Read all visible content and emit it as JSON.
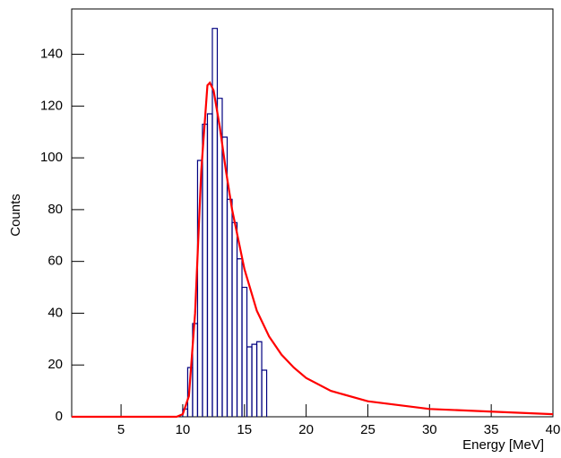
{
  "chart_data": {
    "type": "histogram",
    "xlabel": "Energy [MeV]",
    "ylabel": "Counts",
    "bins": [
      10.0,
      10.4,
      10.8,
      11.2,
      11.6,
      12.0,
      12.4,
      12.8,
      13.2,
      13.6,
      14.0,
      14.4,
      14.8,
      15.2,
      15.6,
      16.0,
      16.4,
      16.8
    ],
    "counts": [
      3,
      19,
      36,
      99,
      113,
      117,
      150,
      123,
      108,
      84,
      75,
      61,
      50,
      27,
      28,
      29,
      18
    ],
    "color": "#000080",
    "fit": {
      "color": "#ff0000",
      "x": [
        1,
        9.5,
        10,
        10.5,
        11,
        11.5,
        12,
        12.2,
        12.5,
        13,
        13.5,
        14,
        15,
        16,
        17,
        18,
        19,
        20,
        22,
        25,
        30,
        35,
        40
      ],
      "values": [
        0,
        0,
        1,
        8,
        40,
        95,
        128,
        129,
        126,
        112,
        95,
        80,
        57,
        41,
        31,
        24,
        19,
        15,
        10,
        6,
        3,
        2,
        1
      ]
    },
    "xlim": [
      1,
      40
    ],
    "ylim": [
      0,
      157.5
    ],
    "xticks": [
      5,
      10,
      15,
      20,
      25,
      30,
      35,
      40
    ],
    "yticks": [
      0,
      20,
      40,
      60,
      80,
      100,
      120,
      140
    ]
  }
}
